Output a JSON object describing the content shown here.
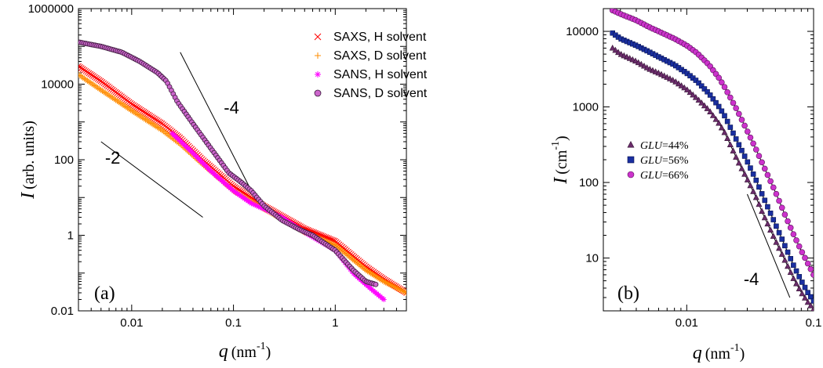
{
  "chart_data": [
    {
      "type": "scatter",
      "panel_label": "(a)",
      "xlabel": "q (nm-1)",
      "xlabel_var": "q",
      "xlabel_unit": "(nm",
      "xlabel_exp": "-1",
      "xlabel_close": ")",
      "ylabel": "I (arb. units)",
      "ylabel_var": "I",
      "ylabel_unit": "(arb. units)",
      "xscale": "log",
      "yscale": "log",
      "xlim": [
        0.003,
        5
      ],
      "ylim": [
        0.01,
        1000000
      ],
      "xticks": [
        {
          "v": 0.01,
          "label": "0.01"
        },
        {
          "v": 0.1,
          "label": "0.1"
        },
        {
          "v": 1,
          "label": "1"
        }
      ],
      "yticks": [
        {
          "v": 0.01,
          "label": "0.01"
        },
        {
          "v": 1,
          "label": "1"
        },
        {
          "v": 100,
          "label": "100"
        },
        {
          "v": 10000,
          "label": "10000"
        },
        {
          "v": 1000000,
          "label": "1000000"
        }
      ],
      "legend_position": "top-right",
      "series": [
        {
          "name": "SAXS, H solvent",
          "marker": "x",
          "color": "#ff0000",
          "x": [
            0.003,
            0.005,
            0.01,
            0.02,
            0.03,
            0.05,
            0.1,
            0.2,
            0.5,
            1,
            2,
            3,
            5
          ],
          "y": [
            30000,
            12000,
            3000,
            900,
            380,
            100,
            20,
            6,
            1.5,
            0.7,
            0.15,
            0.07,
            0.03
          ]
        },
        {
          "name": "SAXS, D solvent",
          "marker": "+",
          "color": "#ff8c00",
          "x": [
            0.003,
            0.005,
            0.01,
            0.02,
            0.03,
            0.05,
            0.1,
            0.2,
            0.5,
            1,
            2,
            3,
            5
          ],
          "y": [
            18000,
            7000,
            2000,
            600,
            260,
            75,
            15,
            5,
            1.2,
            0.55,
            0.12,
            0.06,
            0.03
          ]
        },
        {
          "name": "SANS, H solvent",
          "marker": "*",
          "color": "#ff00ff",
          "x": [
            0.025,
            0.04,
            0.06,
            0.1,
            0.15,
            0.3,
            0.5,
            1,
            1.5,
            2,
            2.5,
            3
          ],
          "y": [
            500,
            150,
            50,
            15,
            7,
            3,
            1.2,
            0.4,
            0.1,
            0.05,
            0.03,
            0.02
          ]
        },
        {
          "name": "SANS, D solvent",
          "marker": "o",
          "color": "#cc66cc",
          "x": [
            0.003,
            0.005,
            0.008,
            0.012,
            0.018,
            0.022,
            0.028,
            0.04,
            0.06,
            0.09,
            0.12,
            0.15,
            0.2,
            0.3,
            0.45,
            0.6,
            1,
            1.5,
            2,
            2.5
          ],
          "y": [
            130000,
            100000,
            70000,
            40000,
            20000,
            12000,
            3500,
            900,
            200,
            45,
            25,
            15,
            6,
            2.5,
            1.4,
            1,
            0.4,
            0.12,
            0.06,
            0.05
          ]
        }
      ],
      "guides": [
        {
          "label": "-2",
          "x": [
            0.005,
            0.05
          ],
          "y": [
            300,
            3
          ]
        },
        {
          "label": "-4",
          "x": [
            0.03,
            0.15
          ],
          "y": [
            70000,
            15
          ]
        }
      ]
    },
    {
      "type": "scatter",
      "panel_label": "(b)",
      "xlabel": "q (nm-1)",
      "xlabel_var": "q",
      "xlabel_unit": "(nm",
      "xlabel_exp": "-1",
      "xlabel_close": ")",
      "ylabel": "I (cm-1)",
      "ylabel_var": "I",
      "ylabel_unit": "(cm",
      "ylabel_exp": "-1",
      "ylabel_close": ")",
      "xscale": "log",
      "yscale": "log",
      "xlim": [
        0.0022,
        0.1
      ],
      "ylim": [
        2,
        20000
      ],
      "xticks": [
        {
          "v": 0.01,
          "label": "0.01"
        },
        {
          "v": 0.1,
          "label": "0.1"
        }
      ],
      "yticks": [
        {
          "v": 10,
          "label": "10"
        },
        {
          "v": 100,
          "label": "100"
        },
        {
          "v": 1000,
          "label": "1000"
        },
        {
          "v": 10000,
          "label": "10000"
        }
      ],
      "legend_position": "center-left",
      "series": [
        {
          "name": "GLU=44%",
          "name_var": "GLU",
          "name_val": "=44%",
          "marker": "triangle",
          "color": "#6b2c6b",
          "x": [
            0.0026,
            0.003,
            0.004,
            0.005,
            0.006,
            0.008,
            0.01,
            0.012,
            0.015,
            0.018,
            0.02,
            0.025,
            0.03,
            0.035,
            0.04,
            0.05,
            0.06,
            0.07,
            0.08,
            0.09,
            0.1
          ],
          "y": [
            6000,
            5000,
            4000,
            3200,
            2800,
            2200,
            1700,
            1300,
            900,
            600,
            450,
            200,
            110,
            65,
            38,
            17,
            9,
            5.2,
            3.5,
            2.6,
            2.1
          ]
        },
        {
          "name": "GLU=56%",
          "name_var": "GLU",
          "name_val": "=56%",
          "marker": "square",
          "color": "#1a2fa0",
          "x": [
            0.0026,
            0.003,
            0.004,
            0.005,
            0.006,
            0.008,
            0.01,
            0.012,
            0.015,
            0.018,
            0.02,
            0.025,
            0.03,
            0.035,
            0.04,
            0.05,
            0.06,
            0.07,
            0.08,
            0.09,
            0.1
          ],
          "y": [
            9500,
            8000,
            6500,
            5400,
            4600,
            3600,
            2800,
            2200,
            1500,
            1000,
            750,
            350,
            190,
            110,
            65,
            28,
            14,
            7.8,
            5,
            3.5,
            2.7
          ]
        },
        {
          "name": "GLU=66%",
          "name_var": "GLU",
          "name_val": "=66%",
          "marker": "circle",
          "color": "#cc33cc",
          "x": [
            0.0026,
            0.003,
            0.004,
            0.005,
            0.006,
            0.008,
            0.01,
            0.012,
            0.015,
            0.018,
            0.02,
            0.025,
            0.03,
            0.035,
            0.04,
            0.05,
            0.06,
            0.07,
            0.08,
            0.09,
            0.1
          ],
          "y": [
            19000,
            17000,
            14000,
            11500,
            10000,
            8000,
            6500,
            5200,
            3600,
            2400,
            1800,
            900,
            480,
            280,
            170,
            75,
            36,
            20,
            12.5,
            8.5,
            6
          ]
        }
      ],
      "guides": [
        {
          "label": "-4",
          "x": [
            0.03,
            0.065
          ],
          "y": [
            70,
            3
          ]
        }
      ]
    }
  ]
}
